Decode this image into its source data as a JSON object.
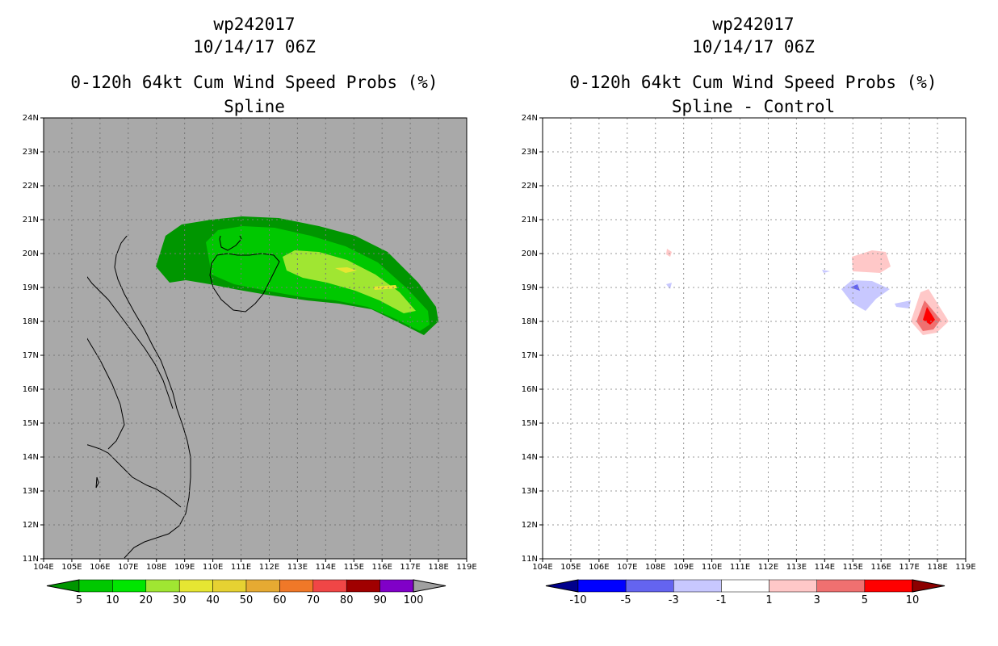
{
  "left_panel": {
    "title_line1": "wp242017",
    "title_line2": "10/14/17 06Z",
    "title_line3": "0-120h 64kt Cum Wind Speed Probs (%)",
    "title_line4": "Spline",
    "colorbar_labels": [
      "5",
      "10",
      "20",
      "30",
      "40",
      "50",
      "60",
      "70",
      "80",
      "90",
      "100"
    ],
    "colorbar_colors": [
      "#009600",
      "#00c800",
      "#00e600",
      "#a0e632",
      "#e6e632",
      "#e6d232",
      "#e6aa32",
      "#f07828",
      "#f04646",
      "#a00000",
      "#8000c8",
      "#a0a0a0"
    ]
  },
  "right_panel": {
    "title_line1": "wp242017",
    "title_line2": "10/14/17 06Z",
    "title_line3": "0-120h 64kt Cum Wind Speed Probs (%)",
    "title_line4": "Spline - Control",
    "colorbar_labels": [
      "-10",
      "-5",
      "-3",
      "-1",
      "1",
      "3",
      "5",
      "10"
    ],
    "colorbar_colors": [
      "#00008c",
      "#0000ff",
      "#6464f0",
      "#c8c8ff",
      "#ffffff",
      "#ffc8c8",
      "#f07070",
      "#ff0000",
      "#8c0000"
    ]
  },
  "axes": {
    "lat_labels": [
      "24N",
      "23N",
      "22N",
      "21N",
      "20N",
      "19N",
      "18N",
      "17N",
      "16N",
      "15N",
      "14N",
      "13N",
      "12N",
      "11N"
    ],
    "lon_labels": [
      "104E",
      "105E",
      "106E",
      "107E",
      "108E",
      "109E",
      "110E",
      "111E",
      "112E",
      "113E",
      "114E",
      "115E",
      "116E",
      "117E",
      "118E",
      "119E"
    ]
  }
}
